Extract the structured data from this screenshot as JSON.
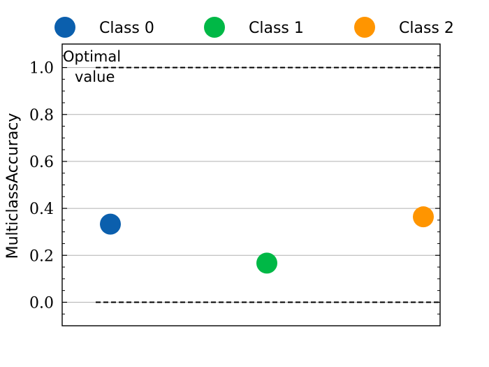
{
  "chart_data": {
    "type": "scatter",
    "ylabel": "MulticlassAccuracy",
    "xlabel": "",
    "title": "",
    "ylim": [
      -0.1,
      1.1
    ],
    "yticks": [
      "0.0",
      "0.2",
      "0.4",
      "0.6",
      "0.8",
      "1.0"
    ],
    "grid": true,
    "legend_position": "top",
    "series": [
      {
        "name": "Class 0",
        "color": "#0b5fad",
        "x": 0,
        "y": 0.333
      },
      {
        "name": "Class 1",
        "color": "#00b846",
        "x": 1,
        "y": 0.167
      },
      {
        "name": "Class 2",
        "color": "#ff9500",
        "x": 2,
        "y": 0.364
      }
    ],
    "reference_lines": [
      {
        "y": 1.0,
        "style": "dashed"
      },
      {
        "y": 0.0,
        "style": "dashed"
      }
    ],
    "annotation": {
      "line1": "Optimal",
      "line2": "value"
    }
  }
}
